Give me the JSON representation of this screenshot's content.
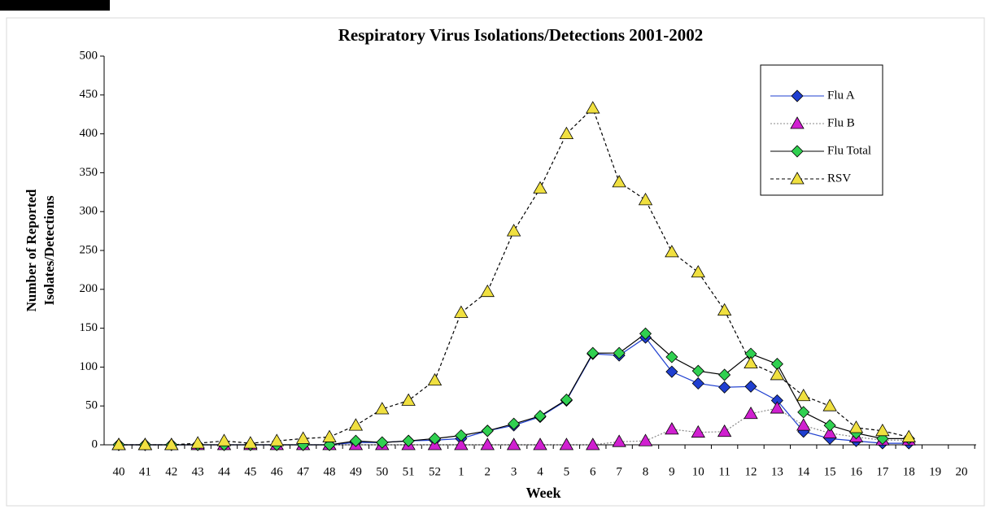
{
  "chart_data": {
    "type": "line",
    "title": "Respiratory Virus Isolations/Detections  2001-2002",
    "x_label": "Week",
    "y_label": [
      "Number of Reported",
      "Isolates/Detections"
    ],
    "categories": [
      "40",
      "41",
      "42",
      "43",
      "44",
      "45",
      "46",
      "47",
      "48",
      "49",
      "50",
      "51",
      "52",
      "1",
      "2",
      "3",
      "4",
      "5",
      "6",
      "7",
      "8",
      "9",
      "10",
      "11",
      "12",
      "13",
      "14",
      "15",
      "16",
      "17",
      "18",
      "19",
      "20"
    ],
    "ylim": [
      0,
      500
    ],
    "yticks": [
      0,
      50,
      100,
      150,
      200,
      250,
      300,
      350,
      400,
      450,
      500
    ],
    "grid": false,
    "legend": "upper right",
    "series": [
      {
        "name": "Flu A",
        "color": "#1f3fd0",
        "line_color": "#1f3fd0",
        "dash": "solid",
        "marker": "diamond",
        "values": [
          0,
          0,
          0,
          0,
          0,
          0,
          0,
          0,
          0,
          3,
          3,
          5,
          6,
          8,
          18,
          25,
          36,
          57,
          117,
          115,
          138,
          94,
          79,
          74,
          75,
          57,
          17,
          8,
          5,
          2,
          2,
          null,
          null
        ]
      },
      {
        "name": "Flu B",
        "color": "#d020d0",
        "line_color": "#888888",
        "dash": "dotted",
        "marker": "triangle",
        "values": [
          0,
          0,
          0,
          0,
          0,
          0,
          0,
          0,
          0,
          0,
          0,
          0,
          0,
          0,
          0,
          0,
          0,
          0,
          0,
          4,
          5,
          20,
          16,
          17,
          40,
          47,
          25,
          15,
          10,
          6,
          6,
          null,
          null
        ]
      },
      {
        "name": "Flu Total",
        "color": "#30d050",
        "line_color": "#000000",
        "dash": "solid",
        "marker": "diamond",
        "values": [
          0,
          0,
          0,
          0,
          0,
          0,
          0,
          0,
          0,
          5,
          3,
          5,
          8,
          12,
          18,
          27,
          37,
          58,
          118,
          118,
          143,
          113,
          95,
          90,
          117,
          104,
          42,
          25,
          15,
          8,
          8,
          null,
          null
        ]
      },
      {
        "name": "RSV",
        "color": "#f0e040",
        "line_color": "#000000",
        "dash": "dashed",
        "marker": "triangle",
        "values": [
          0,
          0,
          0,
          2,
          5,
          2,
          5,
          8,
          10,
          25,
          46,
          57,
          83,
          170,
          197,
          275,
          330,
          400,
          433,
          338,
          315,
          248,
          222,
          173,
          105,
          90,
          63,
          50,
          22,
          18,
          10,
          null,
          null
        ]
      }
    ]
  }
}
